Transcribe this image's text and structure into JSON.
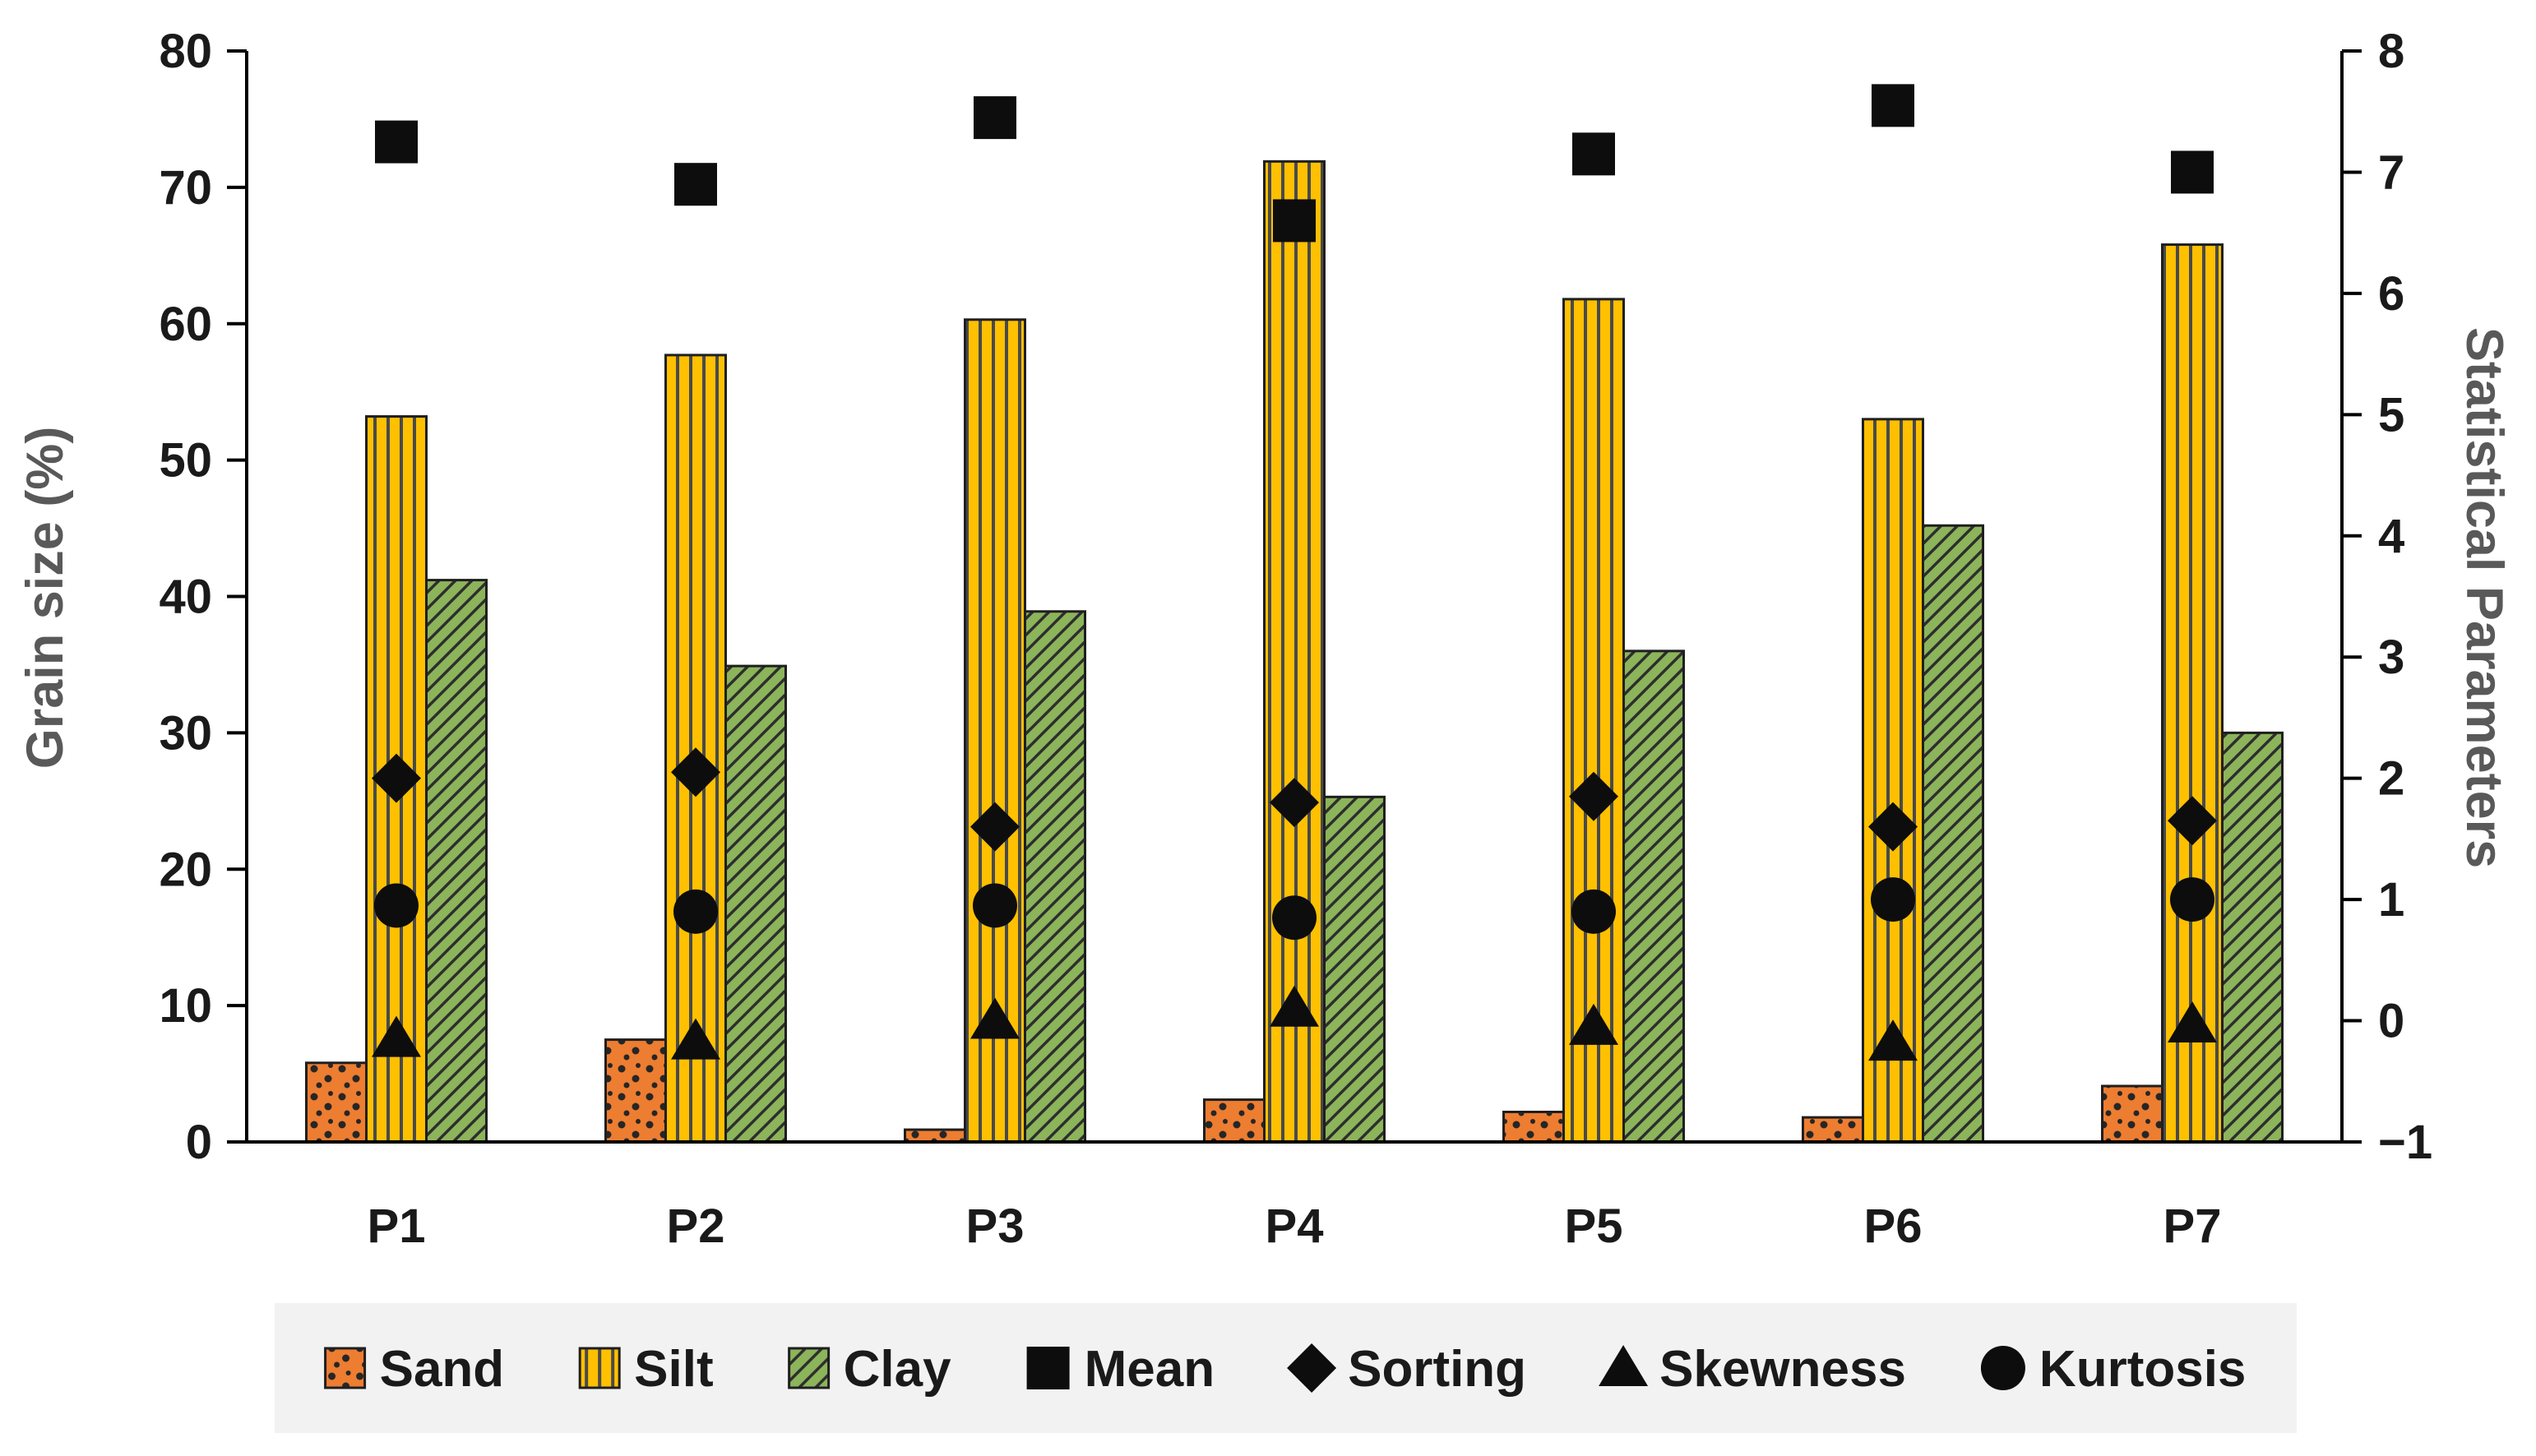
{
  "chart_data": {
    "type": "bar",
    "title": "",
    "categories": [
      "P1",
      "P2",
      "P3",
      "P4",
      "P5",
      "P6",
      "P7"
    ],
    "bar_series": [
      {
        "name": "Sand",
        "fill": "#ED7D31",
        "pattern": "dots",
        "axis": "left",
        "values": [
          5.8,
          7.5,
          0.9,
          3.1,
          2.2,
          1.8,
          4.1
        ]
      },
      {
        "name": "Silt",
        "fill": "#FFC000",
        "pattern": "vertical-lines",
        "axis": "left",
        "values": [
          53.2,
          57.7,
          60.3,
          71.9,
          61.8,
          53.0,
          65.8
        ]
      },
      {
        "name": "Clay",
        "fill": "#8CB45A",
        "pattern": "diagonal-lines",
        "axis": "left",
        "values": [
          41.2,
          34.9,
          38.9,
          25.3,
          36.0,
          45.2,
          30.0
        ]
      }
    ],
    "marker_series": [
      {
        "name": "Mean",
        "marker": "square",
        "axis": "right",
        "values": [
          7.25,
          6.9,
          7.45,
          6.6,
          7.15,
          7.55,
          7.0
        ]
      },
      {
        "name": "Sorting",
        "marker": "diamond",
        "axis": "right",
        "values": [
          2.0,
          2.05,
          1.6,
          1.8,
          1.85,
          1.6,
          1.65
        ]
      },
      {
        "name": "Skewness",
        "marker": "triangle",
        "axis": "right",
        "values": [
          -0.15,
          -0.17,
          0.0,
          0.1,
          -0.05,
          -0.18,
          -0.03
        ]
      },
      {
        "name": "Kurtosis",
        "marker": "circle",
        "axis": "right",
        "values": [
          0.95,
          0.9,
          0.95,
          0.85,
          0.9,
          1.0,
          1.0
        ]
      }
    ],
    "left_axis": {
      "label": "Grain size (%)",
      "min": 0,
      "max": 80,
      "step": 10
    },
    "right_axis": {
      "label": "Statistical Parameters",
      "min": -1,
      "max": 8,
      "step": 1
    },
    "legend": {
      "position": "bottom",
      "background": "#F2F2F2",
      "items": [
        "Sand",
        "Silt",
        "Clay",
        "Mean",
        "Sorting",
        "Skewness",
        "Kurtosis"
      ]
    },
    "grid": "off",
    "marker_color": "#0d0d0d",
    "axis_line_color": "#000000"
  }
}
